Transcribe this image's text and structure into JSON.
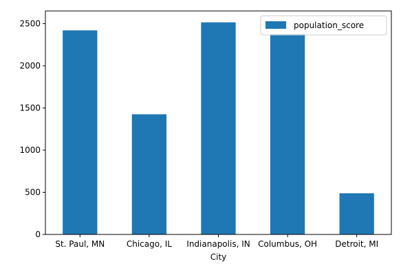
{
  "chart_data": {
    "type": "bar",
    "categories": [
      "St. Paul, MN",
      "Chicago, IL",
      "Indianapolis, IN",
      "Columbus, OH",
      "Detroit, MI"
    ],
    "series": [
      {
        "name": "population_score",
        "values": [
          2420,
          1425,
          2515,
          2380,
          488
        ],
        "color": "#1f77b4"
      }
    ],
    "title": "",
    "xlabel": "City",
    "ylabel": "",
    "ylim": [
      0,
      2650
    ],
    "yticks": [
      0,
      500,
      1000,
      1500,
      2000,
      2500
    ],
    "grid": false,
    "legend_position": "top-right"
  }
}
